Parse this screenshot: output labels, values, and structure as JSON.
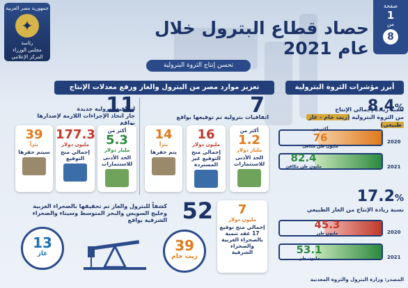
{
  "page_badge": {
    "label_top": "صفحة",
    "number": "1",
    "label_of": "من",
    "total": "8"
  },
  "logo": {
    "line1": "جمهورية مصر العربية",
    "line2": "رئاسة",
    "line3": "مجلس الوزراء",
    "line4": "المركز الإعلامي"
  },
  "title": "حصاد قطاع البترول خلال عام 2021",
  "subtitle": "تحسن إنتاج الثروة البترولية",
  "right_section": {
    "header": "أبرز مؤشرات الثروة البترولية",
    "stat1": {
      "value": "8.4",
      "pct": "%",
      "text_line1": "نسبة زيادة إجمالي الإنتاج",
      "text_line2_pre": "من الثروة البترولية",
      "text_highlight": "(زيت خام - غاز طبيعي)",
      "year_a": "2020",
      "value_a": "76",
      "unit_a": "مليون طن مكافئ",
      "note_a": "أكثر من",
      "year_b": "2021",
      "value_b": "82.4",
      "unit_b": "مليون طن مكافئ"
    },
    "stat2": {
      "value": "17.2",
      "pct": "%",
      "text_line1": "نسبة زيادة الإنتاج من الغاز الطبيعي",
      "year_a": "2020",
      "value_a": "45.3",
      "unit_a": "مليون طن",
      "year_b": "2021",
      "value_b": "53.1",
      "unit_b": "مليون طن"
    }
  },
  "left_section": {
    "header": "تعزيز موارد مصر من البترول والغاز ورفع معدلات الإنتاج",
    "group_a": {
      "count": "7",
      "text": "اتفاقيات بترولية تم توقيعها بواقع",
      "cards": [
        {
          "prefix": "أكثر من",
          "value": "1.2",
          "unit": "مليار دولار",
          "desc": "الحد الأدنى للاستثمارات"
        },
        {
          "prefix": "",
          "value": "16",
          "unit": "مليون دولار",
          "desc": "إجمالي منح التوقيع غير المستردة"
        },
        {
          "prefix": "",
          "value": "14",
          "unit": "بئراً",
          "desc": "يتم حفرها"
        }
      ]
    },
    "group_b": {
      "count": "11",
      "text_line1": "اتفاقية بترولية جديدة",
      "text_line2": "جار اتخاذ الإجراءات اللازمة لإصدارها بواقع",
      "cards": [
        {
          "prefix": "أكثر من",
          "value": "5.3",
          "unit": "مليار دولار",
          "desc": "الحد الأدنى للاستثمارات"
        },
        {
          "prefix": "",
          "value": "177.3",
          "unit": "مليون دولار",
          "desc": "إجمالي منح التوقيع"
        },
        {
          "prefix": "",
          "value": "39",
          "unit": "بئراً",
          "desc": "سيتم حفرها"
        }
      ]
    }
  },
  "bottom": {
    "box": {
      "value": "7",
      "unit": "مليون دولار",
      "text": "إجمالي منح توقيع 17 عقد تنمية بالصحراء الغربية والصحراء الشرقية"
    },
    "count": "52",
    "text": "كشفاً للبترول والغاز تم تحقيقها بالصحراء الغربية وخليج السويس والبحر المتوسط وسيناء والصحراء الشرقية بواقع",
    "oil": {
      "value": "39",
      "label": "زيت خام"
    },
    "gas": {
      "value": "13",
      "label": "غاز"
    }
  },
  "footer": "المصدر: وزارة البترول والثروة المعدنية",
  "colors": {
    "navy": "#1b3266",
    "orange": "#e07a1a",
    "red": "#c0392b",
    "green": "#2c8a3f",
    "gold": "#d7a735"
  }
}
